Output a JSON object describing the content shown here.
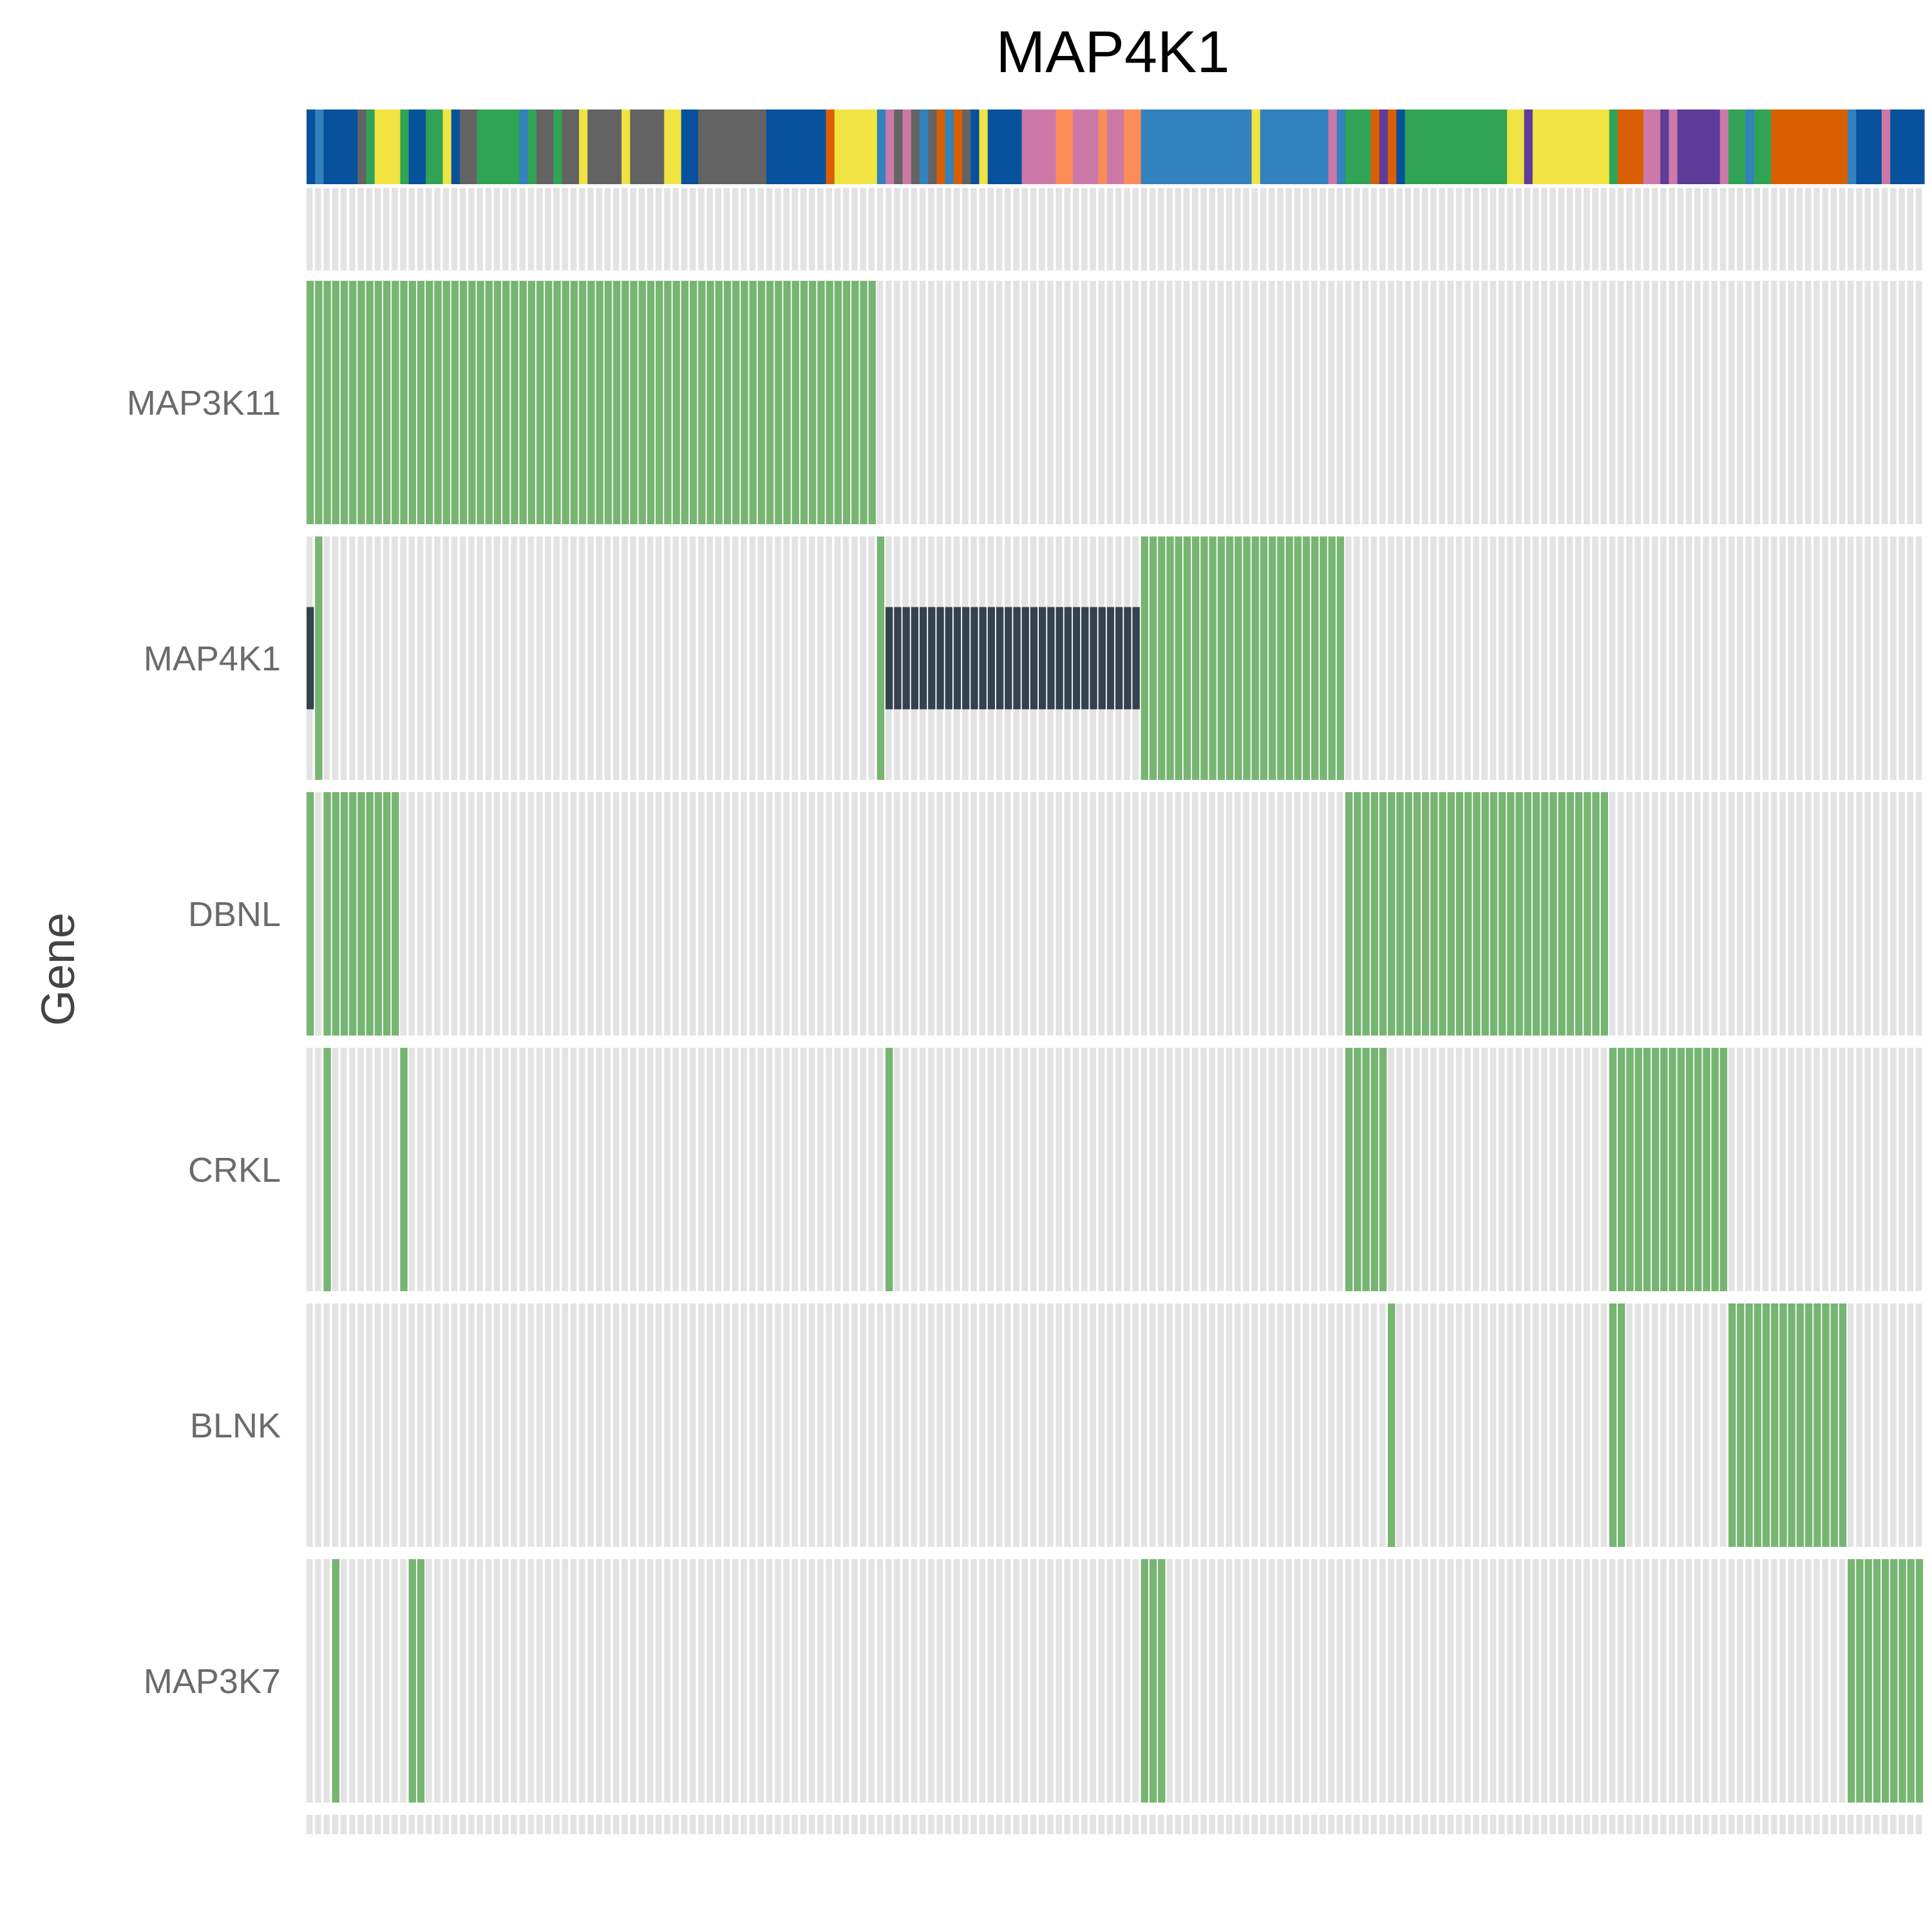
{
  "chart_data": {
    "type": "heatmap",
    "title": "MAP4K1",
    "ylabel": "Gene",
    "xlabel": "",
    "n_samples": 190,
    "genes": [
      "MAP3K11",
      "MAP4K1",
      "DBNL",
      "CRKL",
      "BLNK",
      "MAP3K7"
    ],
    "alteration_colors": {
      "amplification": "#77b572",
      "mutation": "#34414e",
      "none": "#e3e3e3"
    },
    "alterations": {
      "MAP3K11": [
        {
          "type": "amplification",
          "start": 0,
          "end": 67
        }
      ],
      "MAP4K1": [
        {
          "type": "mutation",
          "start": 0,
          "end": 1
        },
        {
          "type": "amplification",
          "start": 1,
          "end": 2
        },
        {
          "type": "amplification",
          "start": 67,
          "end": 68
        },
        {
          "type": "mutation",
          "start": 68,
          "end": 98
        },
        {
          "type": "amplification",
          "start": 98,
          "end": 122
        }
      ],
      "DBNL": [
        {
          "type": "amplification",
          "start": 0,
          "end": 1
        },
        {
          "type": "amplification",
          "start": 2,
          "end": 11
        },
        {
          "type": "amplification",
          "start": 122,
          "end": 153
        }
      ],
      "CRKL": [
        {
          "type": "amplification",
          "start": 2,
          "end": 3
        },
        {
          "type": "amplification",
          "start": 11,
          "end": 12
        },
        {
          "type": "amplification",
          "start": 68,
          "end": 69
        },
        {
          "type": "amplification",
          "start": 122,
          "end": 127
        },
        {
          "type": "amplification",
          "start": 153,
          "end": 167
        }
      ],
      "BLNK": [
        {
          "type": "amplification",
          "start": 127,
          "end": 128
        },
        {
          "type": "amplification",
          "start": 153,
          "end": 155
        },
        {
          "type": "amplification",
          "start": 167,
          "end": 181
        }
      ],
      "MAP3K7": [
        {
          "type": "amplification",
          "start": 3,
          "end": 4
        },
        {
          "type": "amplification",
          "start": 12,
          "end": 14
        },
        {
          "type": "amplification",
          "start": 98,
          "end": 101
        },
        {
          "type": "amplification",
          "start": 181,
          "end": 190
        }
      ]
    },
    "annotation_track": [
      {
        "start": 0,
        "end": 1,
        "color": "#08519c"
      },
      {
        "start": 1,
        "end": 2,
        "color": "#3182bd"
      },
      {
        "start": 2,
        "end": 6,
        "color": "#08519c"
      },
      {
        "start": 6,
        "end": 7,
        "color": "#636363"
      },
      {
        "start": 7,
        "end": 8,
        "color": "#31a354"
      },
      {
        "start": 8,
        "end": 11,
        "color": "#f0e442"
      },
      {
        "start": 11,
        "end": 12,
        "color": "#31a354"
      },
      {
        "start": 12,
        "end": 14,
        "color": "#08519c"
      },
      {
        "start": 14,
        "end": 16,
        "color": "#31a354"
      },
      {
        "start": 16,
        "end": 17,
        "color": "#f0e442"
      },
      {
        "start": 17,
        "end": 18,
        "color": "#08519c"
      },
      {
        "start": 18,
        "end": 20,
        "color": "#636363"
      },
      {
        "start": 20,
        "end": 25,
        "color": "#31a354"
      },
      {
        "start": 25,
        "end": 26,
        "color": "#3182bd"
      },
      {
        "start": 26,
        "end": 27,
        "color": "#31a354"
      },
      {
        "start": 27,
        "end": 29,
        "color": "#636363"
      },
      {
        "start": 29,
        "end": 30,
        "color": "#31a354"
      },
      {
        "start": 30,
        "end": 32,
        "color": "#636363"
      },
      {
        "start": 32,
        "end": 33,
        "color": "#f0e442"
      },
      {
        "start": 33,
        "end": 37,
        "color": "#636363"
      },
      {
        "start": 37,
        "end": 38,
        "color": "#f0e442"
      },
      {
        "start": 38,
        "end": 42,
        "color": "#636363"
      },
      {
        "start": 42,
        "end": 44,
        "color": "#f0e442"
      },
      {
        "start": 44,
        "end": 46,
        "color": "#08519c"
      },
      {
        "start": 46,
        "end": 54,
        "color": "#636363"
      },
      {
        "start": 54,
        "end": 55,
        "color": "#08519c"
      },
      {
        "start": 55,
        "end": 57,
        "color": "#08519c"
      },
      {
        "start": 57,
        "end": 61,
        "color": "#08519c"
      },
      {
        "start": 61,
        "end": 62,
        "color": "#d95f02"
      },
      {
        "start": 62,
        "end": 67,
        "color": "#f0e442"
      },
      {
        "start": 67,
        "end": 68,
        "color": "#3182bd"
      },
      {
        "start": 68,
        "end": 69,
        "color": "#cc79a7"
      },
      {
        "start": 69,
        "end": 70,
        "color": "#636363"
      },
      {
        "start": 70,
        "end": 71,
        "color": "#cc79a7"
      },
      {
        "start": 71,
        "end": 72,
        "color": "#636363"
      },
      {
        "start": 72,
        "end": 73,
        "color": "#3182bd"
      },
      {
        "start": 73,
        "end": 74,
        "color": "#636363"
      },
      {
        "start": 74,
        "end": 75,
        "color": "#d95f02"
      },
      {
        "start": 75,
        "end": 76,
        "color": "#3182bd"
      },
      {
        "start": 76,
        "end": 77,
        "color": "#d95f02"
      },
      {
        "start": 77,
        "end": 78,
        "color": "#636363"
      },
      {
        "start": 78,
        "end": 79,
        "color": "#08519c"
      },
      {
        "start": 79,
        "end": 80,
        "color": "#f0e442"
      },
      {
        "start": 80,
        "end": 84,
        "color": "#08519c"
      },
      {
        "start": 84,
        "end": 88,
        "color": "#cc79a7"
      },
      {
        "start": 88,
        "end": 90,
        "color": "#fc8d59"
      },
      {
        "start": 90,
        "end": 93,
        "color": "#cc79a7"
      },
      {
        "start": 93,
        "end": 94,
        "color": "#fc8d59"
      },
      {
        "start": 94,
        "end": 96,
        "color": "#cc79a7"
      },
      {
        "start": 96,
        "end": 98,
        "color": "#fc8d59"
      },
      {
        "start": 98,
        "end": 111,
        "color": "#3182bd"
      },
      {
        "start": 111,
        "end": 112,
        "color": "#f0e442"
      },
      {
        "start": 112,
        "end": 120,
        "color": "#3182bd"
      },
      {
        "start": 120,
        "end": 121,
        "color": "#cc79a7"
      },
      {
        "start": 121,
        "end": 122,
        "color": "#3182bd"
      },
      {
        "start": 122,
        "end": 125,
        "color": "#31a354"
      },
      {
        "start": 125,
        "end": 126,
        "color": "#d95f02"
      },
      {
        "start": 126,
        "end": 127,
        "color": "#5e3c99"
      },
      {
        "start": 127,
        "end": 128,
        "color": "#d95f02"
      },
      {
        "start": 128,
        "end": 129,
        "color": "#08519c"
      },
      {
        "start": 129,
        "end": 141,
        "color": "#31a354"
      },
      {
        "start": 141,
        "end": 143,
        "color": "#f0e442"
      },
      {
        "start": 143,
        "end": 144,
        "color": "#5e3c99"
      },
      {
        "start": 144,
        "end": 153,
        "color": "#f0e442"
      },
      {
        "start": 153,
        "end": 154,
        "color": "#31a354"
      },
      {
        "start": 154,
        "end": 157,
        "color": "#d95f02"
      },
      {
        "start": 157,
        "end": 159,
        "color": "#cc79a7"
      },
      {
        "start": 159,
        "end": 160,
        "color": "#5e3c99"
      },
      {
        "start": 160,
        "end": 161,
        "color": "#cc79a7"
      },
      {
        "start": 161,
        "end": 166,
        "color": "#5e3c99"
      },
      {
        "start": 166,
        "end": 167,
        "color": "#cc79a7"
      },
      {
        "start": 167,
        "end": 169,
        "color": "#31a354"
      },
      {
        "start": 169,
        "end": 170,
        "color": "#3182bd"
      },
      {
        "start": 170,
        "end": 172,
        "color": "#31a354"
      },
      {
        "start": 172,
        "end": 181,
        "color": "#d95f02"
      },
      {
        "start": 181,
        "end": 182,
        "color": "#3182bd"
      },
      {
        "start": 182,
        "end": 185,
        "color": "#08519c"
      },
      {
        "start": 185,
        "end": 186,
        "color": "#cc79a7"
      },
      {
        "start": 186,
        "end": 190,
        "color": "#08519c"
      }
    ],
    "grid": true
  }
}
